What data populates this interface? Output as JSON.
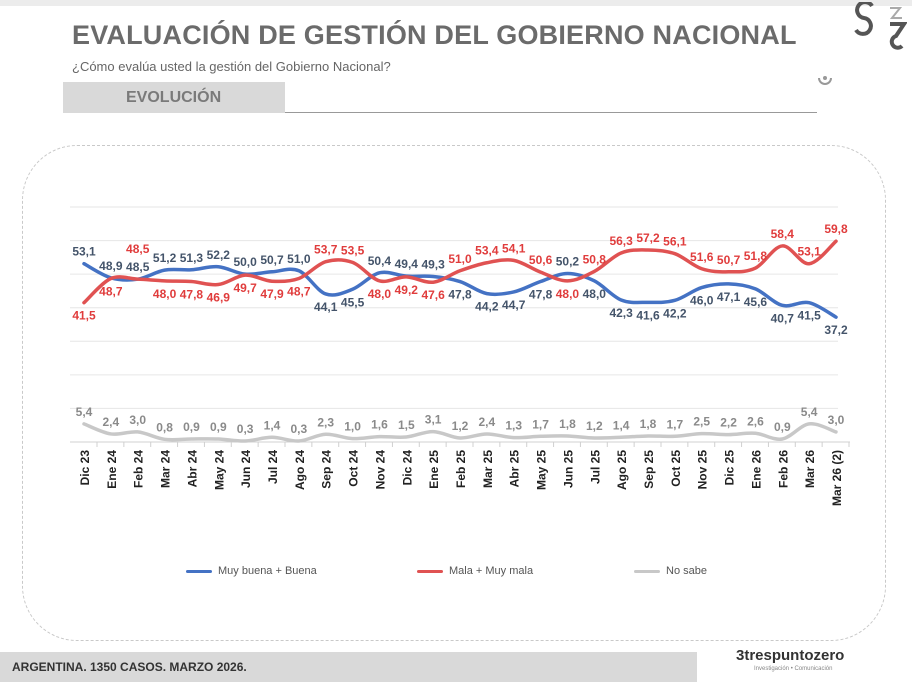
{
  "header": {
    "title": "EVALUACIÓN DE GESTIÓN DEL GOBIERNO NACIONAL",
    "subtitle": "¿Cómo evalúa usted la gestión del Gobierno Nacional?",
    "section": "EVOLUCIÓN"
  },
  "footer": {
    "text": "ARGENTINA. 1350 CASOS. MARZO 2026.",
    "brand": "trespuntozero",
    "brand_tagline": "Investigación • Comunicación"
  },
  "chart_data": {
    "type": "line",
    "categories": [
      "Dic 23",
      "Ene 24",
      "Feb 24",
      "Mar 24",
      "Abr 24",
      "May 24",
      "Jun 24",
      "Jul 24",
      "Ago 24",
      "Sep 24",
      "Oct 24",
      "Nov 24",
      "Dic 24",
      "Ene 25",
      "Feb 25",
      "Mar 25",
      "Abr 25",
      "May 25",
      "Jun 25",
      "Jul 25",
      "Ago 25",
      "Sep 25",
      "Oct 25",
      "Nov 25",
      "Dic 25",
      "Ene 26",
      "Feb 26",
      "Mar 26",
      "Mar 26 (2)"
    ],
    "ylim": [
      0,
      70
    ],
    "grid": true,
    "legend": "bottom",
    "series": [
      {
        "name": "Muy buena + Buena",
        "color": "#4472c4",
        "label_color": "#44546a",
        "values": [
          53.1,
          48.9,
          48.5,
          51.2,
          51.3,
          52.2,
          50.0,
          50.7,
          51.0,
          44.1,
          45.5,
          50.4,
          49.4,
          49.3,
          47.8,
          44.2,
          44.7,
          47.8,
          50.2,
          48.0,
          42.3,
          41.6,
          42.2,
          46.0,
          47.1,
          45.6,
          40.7,
          41.5,
          37.2
        ]
      },
      {
        "name": "Mala + Muy mala",
        "color": "#e05252",
        "label_color": "#e03c3c",
        "values": [
          41.5,
          48.7,
          48.5,
          48.0,
          47.8,
          46.9,
          49.7,
          47.9,
          48.7,
          53.7,
          53.5,
          48.0,
          49.2,
          47.6,
          51.0,
          53.4,
          54.1,
          50.6,
          48.0,
          50.8,
          56.3,
          57.2,
          56.1,
          51.6,
          50.7,
          51.8,
          58.4,
          53.1,
          59.8
        ]
      },
      {
        "name": "No sabe",
        "color": "#c8c8c8",
        "label_color": "#8a8a8a",
        "values": [
          5.4,
          2.4,
          3.0,
          0.8,
          0.9,
          0.9,
          0.3,
          1.4,
          0.3,
          2.3,
          1.0,
          1.6,
          1.5,
          3.1,
          1.2,
          2.4,
          1.3,
          1.7,
          1.8,
          1.2,
          1.4,
          1.8,
          1.7,
          2.5,
          2.2,
          2.6,
          0.9,
          5.4,
          3.0
        ]
      }
    ]
  }
}
